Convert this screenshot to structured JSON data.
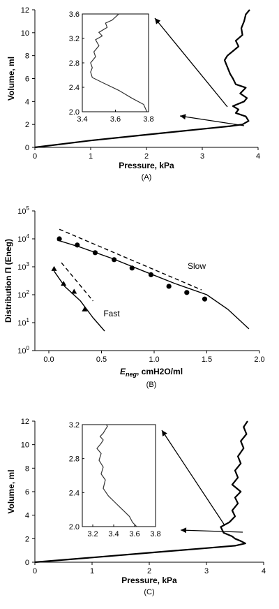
{
  "chart_data": [
    {
      "type": "line",
      "caption": "(A)",
      "xlabel": "Pressure, kPa",
      "ylabel": "Volume, ml",
      "xlim": [
        0,
        4
      ],
      "ylim": [
        0,
        12
      ],
      "xticks": [
        "0",
        "1",
        "2",
        "3",
        "4"
      ],
      "yticks": [
        "0",
        "2",
        "4",
        "6",
        "8",
        "10",
        "12"
      ],
      "series": [
        {
          "x": [
            0,
            1.0,
            2.0,
            3.0,
            3.5,
            3.72,
            3.83,
            3.78,
            3.6,
            3.65,
            3.55,
            3.75,
            3.8,
            3.68,
            3.78,
            3.6,
            3.55,
            3.5,
            3.45,
            3.4,
            3.45,
            3.55,
            3.65,
            3.6,
            3.72,
            3.7,
            3.75,
            3.78,
            3.85
          ],
          "y": [
            0,
            0.6,
            1.1,
            1.6,
            1.85,
            2.0,
            2.3,
            2.7,
            3.0,
            3.3,
            3.6,
            4.0,
            4.3,
            4.7,
            5.2,
            5.5,
            6.0,
            6.4,
            7.0,
            7.6,
            8.0,
            8.4,
            8.8,
            9.3,
            9.8,
            10.4,
            11.0,
            11.6,
            12.0
          ]
        }
      ],
      "inset": {
        "xlim": [
          3.4,
          3.8
        ],
        "ylim": [
          2.0,
          3.6
        ],
        "xticks": [
          "3.4",
          "3.6",
          "3.8"
        ],
        "yticks": [
          "2.0",
          "2.4",
          "2.8",
          "3.2",
          "3.6"
        ],
        "x": [
          3.79,
          3.77,
          3.7,
          3.62,
          3.52,
          3.46,
          3.45,
          3.46,
          3.45,
          3.48,
          3.47,
          3.5,
          3.48,
          3.52,
          3.5,
          3.55,
          3.54,
          3.58,
          3.6,
          3.62
        ],
        "y": [
          2.0,
          2.12,
          2.22,
          2.35,
          2.48,
          2.56,
          2.65,
          2.72,
          2.8,
          2.9,
          2.98,
          3.08,
          3.18,
          3.24,
          3.3,
          3.38,
          3.45,
          3.5,
          3.55,
          3.6
        ]
      }
    },
    {
      "type": "scatter",
      "caption": "(B)",
      "xlabel": "E_neg, cmH2O/ml",
      "ylabel": "Distribution Π (E_neg)",
      "xlim": [
        0,
        2.0
      ],
      "ylog": true,
      "ylim_exp": [
        0,
        5
      ],
      "xticks": [
        "0.0",
        "0.5",
        "1.0",
        "1.5",
        "2.0"
      ],
      "yticks_exp": [
        "0",
        "1",
        "2",
        "3",
        "4",
        "5"
      ],
      "series": [
        {
          "name": "Slow",
          "marker": "circle",
          "x": [
            0.1,
            0.27,
            0.44,
            0.62,
            0.79,
            0.97,
            1.14,
            1.31,
            1.48
          ],
          "y": [
            10000,
            6000,
            3200,
            1800,
            900,
            520,
            200,
            120,
            70
          ]
        },
        {
          "name": "Fast",
          "marker": "triangle",
          "x": [
            0.05,
            0.14,
            0.24,
            0.34
          ],
          "y": [
            850,
            250,
            130,
            30
          ]
        }
      ],
      "fit_lines": [
        {
          "x": [
            0.08,
            0.3,
            0.6,
            0.9,
            1.2,
            1.5,
            1.7,
            1.9
          ],
          "y": [
            9000,
            5000,
            2000,
            700,
            250,
            100,
            30,
            6
          ]
        },
        {
          "x": [
            0.05,
            0.15,
            0.3,
            0.42,
            0.53
          ],
          "y": [
            700,
            200,
            60,
            15,
            5
          ]
        }
      ],
      "dashed_lines": [
        {
          "x": [
            0.1,
            1.45
          ],
          "y": [
            22000,
            150
          ]
        },
        {
          "x": [
            0.12,
            0.42
          ],
          "y": [
            1400,
            60
          ]
        }
      ]
    },
    {
      "type": "line",
      "caption": "(C)",
      "xlabel": "Pressure, kPa",
      "ylabel": "Volume, ml",
      "xlim": [
        0,
        4
      ],
      "ylim": [
        0,
        12
      ],
      "xticks": [
        "0",
        "1",
        "2",
        "3",
        "4"
      ],
      "yticks": [
        "0",
        "2",
        "4",
        "6",
        "8",
        "10",
        "12"
      ],
      "series": [
        {
          "x": [
            0,
            1.0,
            2.0,
            3.0,
            3.5,
            3.68,
            3.6,
            3.5,
            3.45,
            3.3,
            3.25,
            3.4,
            3.5,
            3.45,
            3.55,
            3.5,
            3.6,
            3.45,
            3.55,
            3.5,
            3.6,
            3.55,
            3.65,
            3.6,
            3.7,
            3.65,
            3.72
          ],
          "y": [
            0,
            0.4,
            0.8,
            1.2,
            1.4,
            1.6,
            1.8,
            2.0,
            2.2,
            2.5,
            3.0,
            3.4,
            3.9,
            4.4,
            5.0,
            5.5,
            6.0,
            6.6,
            7.2,
            7.8,
            8.4,
            9.0,
            9.7,
            10.3,
            10.9,
            11.5,
            12.0
          ]
        }
      ],
      "inset": {
        "xlim": [
          3.1,
          3.8
        ],
        "ylim": [
          2.0,
          3.2
        ],
        "xticks": [
          "3.2",
          "3.4",
          "3.6",
          "3.8"
        ],
        "yticks": [
          "2.0",
          "2.4",
          "2.8",
          "3.2"
        ],
        "x": [
          3.62,
          3.58,
          3.55,
          3.5,
          3.45,
          3.4,
          3.35,
          3.3,
          3.32,
          3.28,
          3.3,
          3.26,
          3.28,
          3.24,
          3.28,
          3.3,
          3.27,
          3.3,
          3.32,
          3.34,
          3.33
        ],
        "y": [
          2.0,
          2.05,
          2.12,
          2.18,
          2.24,
          2.3,
          2.36,
          2.45,
          2.55,
          2.62,
          2.7,
          2.78,
          2.86,
          2.92,
          2.98,
          3.02,
          3.06,
          3.1,
          3.14,
          3.18,
          3.2
        ]
      }
    }
  ],
  "labels": {
    "a_caption": "(A)",
    "b_caption": "(B)",
    "c_caption": "(C)",
    "slow": "Slow",
    "fast": "Fast",
    "b_xlabel_sub": "neg",
    "b_xlabel_rest": ", cmH2O/ml",
    "b_ylabel": "Distribution Π (Eneg)"
  }
}
